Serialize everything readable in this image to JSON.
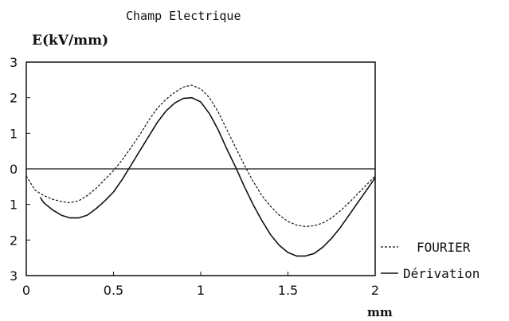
{
  "chart_data": {
    "type": "line",
    "title": "Champ Electrique",
    "ylabel": "E(kV/mm)",
    "xlabel": "mm",
    "xlim": [
      0,
      2
    ],
    "ylim": [
      -3,
      3
    ],
    "x_ticks": [
      "0",
      "0.5",
      "1",
      "1.5",
      "2"
    ],
    "y_ticks": [
      "3",
      "2",
      "1",
      "0",
      "1",
      "2",
      "3"
    ],
    "y_tick_values": [
      3,
      2,
      1,
      0,
      -1,
      -2,
      -3
    ],
    "x_tick_values": [
      0,
      0.5,
      1,
      1.5,
      2
    ],
    "zero_line": true,
    "grid": false,
    "legend_position": "bottom-right",
    "series": [
      {
        "name": "FOURIER",
        "style": "dashed",
        "color": "#111111",
        "x": [
          0.0,
          0.05,
          0.1,
          0.15,
          0.2,
          0.25,
          0.3,
          0.35,
          0.4,
          0.45,
          0.5,
          0.55,
          0.6,
          0.65,
          0.7,
          0.75,
          0.8,
          0.85,
          0.9,
          0.95,
          1.0,
          1.05,
          1.1,
          1.15,
          1.2,
          1.25,
          1.3,
          1.35,
          1.4,
          1.45,
          1.5,
          1.55,
          1.6,
          1.65,
          1.7,
          1.75,
          1.8,
          1.85,
          1.9,
          1.95,
          2.0
        ],
        "y": [
          -0.2,
          -0.6,
          -0.75,
          -0.85,
          -0.92,
          -0.95,
          -0.9,
          -0.75,
          -0.55,
          -0.3,
          -0.05,
          0.25,
          0.6,
          0.95,
          1.35,
          1.7,
          1.95,
          2.15,
          2.3,
          2.35,
          2.25,
          2.0,
          1.6,
          1.1,
          0.6,
          0.1,
          -0.35,
          -0.75,
          -1.05,
          -1.3,
          -1.48,
          -1.58,
          -1.62,
          -1.6,
          -1.52,
          -1.38,
          -1.18,
          -0.95,
          -0.7,
          -0.45,
          -0.2
        ]
      },
      {
        "name": "Dérivation",
        "style": "solid",
        "color": "#111111",
        "x": [
          0.08,
          0.1,
          0.15,
          0.2,
          0.25,
          0.3,
          0.35,
          0.4,
          0.45,
          0.5,
          0.55,
          0.6,
          0.65,
          0.7,
          0.75,
          0.8,
          0.85,
          0.9,
          0.95,
          1.0,
          1.05,
          1.1,
          1.15,
          1.2,
          1.25,
          1.3,
          1.35,
          1.4,
          1.45,
          1.5,
          1.55,
          1.6,
          1.65,
          1.7,
          1.75,
          1.8,
          1.85,
          1.9,
          1.95,
          2.0
        ],
        "y": [
          -0.8,
          -0.95,
          -1.15,
          -1.3,
          -1.38,
          -1.38,
          -1.3,
          -1.12,
          -0.9,
          -0.65,
          -0.3,
          0.1,
          0.5,
          0.9,
          1.3,
          1.62,
          1.85,
          1.98,
          2.0,
          1.88,
          1.55,
          1.1,
          0.55,
          0.05,
          -0.5,
          -1.0,
          -1.45,
          -1.85,
          -2.15,
          -2.35,
          -2.45,
          -2.45,
          -2.38,
          -2.2,
          -1.95,
          -1.65,
          -1.3,
          -0.95,
          -0.6,
          -0.25
        ]
      }
    ]
  }
}
